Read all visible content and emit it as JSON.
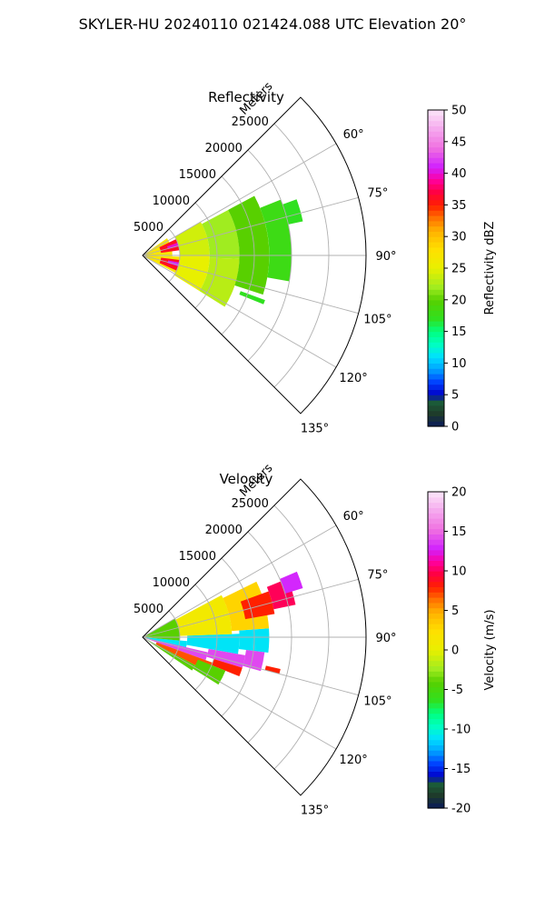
{
  "figure": {
    "title": "SKYLER-HU  20240110  021424.088 UTC Elevation 20°"
  },
  "chart_data": [
    {
      "type": "heatmap",
      "subtype": "polar-sector",
      "title": "Reflectivity",
      "r_label": "Meters",
      "r_ticks": [
        "5000",
        "10000",
        "15000",
        "20000",
        "25000"
      ],
      "r_tick_values": [
        5000,
        10000,
        15000,
        20000,
        25000
      ],
      "r_max": 30000,
      "theta_range_deg": [
        45,
        135
      ],
      "theta_ticks": [
        "60°",
        "75°",
        "90°",
        "105°",
        "120°",
        "135°"
      ],
      "theta_tick_values": [
        60,
        75,
        90,
        105,
        120,
        135
      ],
      "grid": true,
      "colorbar": {
        "label": "Reflectivity dBZ",
        "range": [
          0,
          50
        ],
        "ticks": [
          "0",
          "5",
          "10",
          "15",
          "20",
          "25",
          "30",
          "35",
          "40",
          "45",
          "50"
        ],
        "tick_values": [
          0,
          5,
          10,
          15,
          20,
          25,
          30,
          35,
          40,
          45,
          50
        ],
        "colormap": "HomeyerRainbow",
        "stops": [
          {
            "v": 0,
            "c": "#0a1a5a"
          },
          {
            "v": 2,
            "c": "#1e3a2a"
          },
          {
            "v": 4,
            "c": "#1b5e3a"
          },
          {
            "v": 5,
            "c": "#0000c8"
          },
          {
            "v": 7,
            "c": "#0040ff"
          },
          {
            "v": 9,
            "c": "#00a0ff"
          },
          {
            "v": 11,
            "c": "#00e0ff"
          },
          {
            "v": 13,
            "c": "#00ffc0"
          },
          {
            "v": 15,
            "c": "#00ff80"
          },
          {
            "v": 17,
            "c": "#30e020"
          },
          {
            "v": 20,
            "c": "#58d000"
          },
          {
            "v": 22,
            "c": "#a0ec20"
          },
          {
            "v": 25,
            "c": "#e8f000"
          },
          {
            "v": 28,
            "c": "#ffe000"
          },
          {
            "v": 31,
            "c": "#ffb000"
          },
          {
            "v": 33,
            "c": "#ff7000"
          },
          {
            "v": 35,
            "c": "#ff2000"
          },
          {
            "v": 37,
            "c": "#ff0040"
          },
          {
            "v": 39,
            "c": "#ff00a0"
          },
          {
            "v": 41,
            "c": "#d020ff"
          },
          {
            "v": 44,
            "c": "#f070e0"
          },
          {
            "v": 47,
            "c": "#f5a8ee"
          },
          {
            "v": 50,
            "c": "#fbe6f8"
          }
        ]
      },
      "field": {
        "cells": [
          {
            "r": [
              0,
              5000
            ],
            "theta": [
              92,
              118
            ],
            "value": 27
          },
          {
            "r": [
              0,
              4000
            ],
            "theta": [
              55,
              92
            ],
            "value": 27
          },
          {
            "r": [
              2500,
              5500
            ],
            "theta": [
              64,
              82
            ],
            "value": 36
          },
          {
            "r": [
              3500,
              5500
            ],
            "theta": [
              70,
              76
            ],
            "value": 40
          },
          {
            "r": [
              2500,
              6000
            ],
            "theta": [
              97,
              114
            ],
            "value": 36
          },
          {
            "r": [
              3500,
              5500
            ],
            "theta": [
              101,
              107
            ],
            "value": 41
          },
          {
            "r": [
              5000,
              9000
            ],
            "theta": [
              60,
              90
            ],
            "value": 24
          },
          {
            "r": [
              5000,
              9000
            ],
            "theta": [
              90,
              122
            ],
            "value": 25
          },
          {
            "r": [
              9000,
              13000
            ],
            "theta": [
              62,
              92
            ],
            "value": 22
          },
          {
            "r": [
              9000,
              13000
            ],
            "theta": [
              92,
              122
            ],
            "value": 23
          },
          {
            "r": [
              13000,
              17000
            ],
            "theta": [
              62,
              108
            ],
            "value": 20
          },
          {
            "r": [
              17000,
              20000
            ],
            "theta": [
              68,
              100
            ],
            "value": 18
          },
          {
            "r": [
              20000,
              22000
            ],
            "theta": [
              70,
              78
            ],
            "value": 17
          },
          {
            "r": [
              14000,
              17500
            ],
            "theta": [
              110,
              112
            ],
            "value": 17
          }
        ]
      }
    },
    {
      "type": "heatmap",
      "subtype": "polar-sector",
      "title": "Velocity",
      "r_label": "Meters",
      "r_ticks": [
        "5000",
        "10000",
        "15000",
        "20000",
        "25000"
      ],
      "r_tick_values": [
        5000,
        10000,
        15000,
        20000,
        25000
      ],
      "r_max": 30000,
      "theta_range_deg": [
        45,
        135
      ],
      "theta_ticks": [
        "60°",
        "75°",
        "90°",
        "105°",
        "120°",
        "135°"
      ],
      "theta_tick_values": [
        60,
        75,
        90,
        105,
        120,
        135
      ],
      "grid": true,
      "colorbar": {
        "label": "Velocity (m/s)",
        "range": [
          -20,
          20
        ],
        "ticks": [
          "-20",
          "-15",
          "-10",
          "-5",
          "0",
          "5",
          "10",
          "15",
          "20"
        ],
        "tick_values": [
          -20,
          -15,
          -10,
          -5,
          0,
          5,
          10,
          15,
          20
        ],
        "colormap": "HomeyerRainbow",
        "stops": [
          {
            "v": -20,
            "c": "#0a1a5a"
          },
          {
            "v": -18.4,
            "c": "#1e3a2a"
          },
          {
            "v": -16.8,
            "c": "#1b5e3a"
          },
          {
            "v": -16,
            "c": "#0000c8"
          },
          {
            "v": -14.4,
            "c": "#0040ff"
          },
          {
            "v": -12.8,
            "c": "#00a0ff"
          },
          {
            "v": -11.2,
            "c": "#00e0ff"
          },
          {
            "v": -9.6,
            "c": "#00ffc0"
          },
          {
            "v": -8,
            "c": "#00ff80"
          },
          {
            "v": -6.4,
            "c": "#30e020"
          },
          {
            "v": -4,
            "c": "#58d000"
          },
          {
            "v": -2.4,
            "c": "#a0ec20"
          },
          {
            "v": 0,
            "c": "#e8f000"
          },
          {
            "v": 2.4,
            "c": "#ffe000"
          },
          {
            "v": 4.8,
            "c": "#ffb000"
          },
          {
            "v": 6.4,
            "c": "#ff7000"
          },
          {
            "v": 8,
            "c": "#ff2000"
          },
          {
            "v": 9.6,
            "c": "#ff0040"
          },
          {
            "v": 11.2,
            "c": "#ff00a0"
          },
          {
            "v": 12.8,
            "c": "#d020ff"
          },
          {
            "v": 15.2,
            "c": "#f070e0"
          },
          {
            "v": 17.6,
            "c": "#f5a8ee"
          },
          {
            "v": 20,
            "c": "#fbe6f8"
          }
        ]
      },
      "field": {
        "cells": [
          {
            "r": [
              0,
              6000
            ],
            "theta": [
              95,
              103
            ],
            "value": -11
          },
          {
            "r": [
              6000,
              13000
            ],
            "theta": [
              88,
              100
            ],
            "value": -11
          },
          {
            "r": [
              13000,
              17000
            ],
            "theta": [
              86,
              97
            ],
            "value": -11
          },
          {
            "r": [
              0,
              9000
            ],
            "theta": [
              103,
              110
            ],
            "value": 14
          },
          {
            "r": [
              9000,
              14000
            ],
            "theta": [
              100,
              107
            ],
            "value": 14
          },
          {
            "r": [
              14000,
              16500
            ],
            "theta": [
              97,
              106
            ],
            "value": 14
          },
          {
            "r": [
              2000,
              10000
            ],
            "theta": [
              110,
              118
            ],
            "value": 7
          },
          {
            "r": [
              10000,
              14000
            ],
            "theta": [
              107,
              112
            ],
            "value": 8
          },
          {
            "r": [
              0,
              8000
            ],
            "theta": [
              118,
              124
            ],
            "value": -4
          },
          {
            "r": [
              8000,
              12000
            ],
            "theta": [
              112,
              122
            ],
            "value": -4
          },
          {
            "r": [
              0,
              5000
            ],
            "theta": [
              60,
              95
            ],
            "value": -4
          },
          {
            "r": [
              5000,
              12000
            ],
            "theta": [
              62,
              88
            ],
            "value": 1
          },
          {
            "r": [
              12000,
              17000
            ],
            "theta": [
              64,
              86
            ],
            "value": 3
          },
          {
            "r": [
              14000,
              18000
            ],
            "theta": [
              70,
              80
            ],
            "value": 8
          },
          {
            "r": [
              18000,
              21000
            ],
            "theta": [
              68,
              78
            ],
            "value": 10
          },
          {
            "r": [
              20000,
              22500
            ],
            "theta": [
              67,
              73
            ],
            "value": 13
          },
          {
            "r": [
              17000,
              19000
            ],
            "theta": [
              103,
              105
            ],
            "value": 8
          }
        ]
      }
    }
  ]
}
